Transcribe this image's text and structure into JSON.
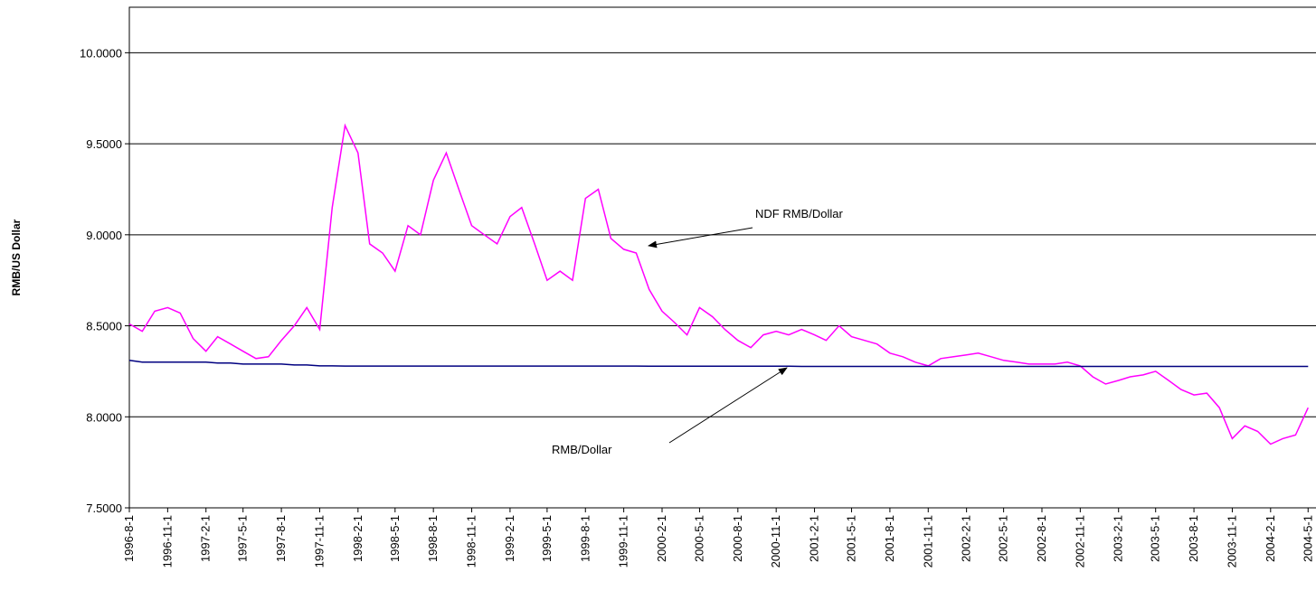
{
  "chart_data": {
    "type": "line",
    "y_label": "RMB/US Dollar",
    "x": [
      "1996-8-1",
      "1996-9-1",
      "1996-10-1",
      "1996-11-1",
      "1996-12-1",
      "1997-1-1",
      "1997-2-1",
      "1997-3-1",
      "1997-4-1",
      "1997-5-1",
      "1997-6-1",
      "1997-7-1",
      "1997-8-1",
      "1997-9-1",
      "1997-10-1",
      "1997-11-1",
      "1997-12-1",
      "1998-1-1",
      "1998-2-1",
      "1998-3-1",
      "1998-4-1",
      "1998-5-1",
      "1998-6-1",
      "1998-7-1",
      "1998-8-1",
      "1998-9-1",
      "1998-10-1",
      "1998-11-1",
      "1998-12-1",
      "1999-1-1",
      "1999-2-1",
      "1999-3-1",
      "1999-4-1",
      "1999-5-1",
      "1999-6-1",
      "1999-7-1",
      "1999-8-1",
      "1999-9-1",
      "1999-10-1",
      "1999-11-1",
      "1999-12-1",
      "2000-1-1",
      "2000-2-1",
      "2000-3-1",
      "2000-4-1",
      "2000-5-1",
      "2000-6-1",
      "2000-7-1",
      "2000-8-1",
      "2000-9-1",
      "2000-10-1",
      "2000-11-1",
      "2000-12-1",
      "2001-1-1",
      "2001-2-1",
      "2001-3-1",
      "2001-4-1",
      "2001-5-1",
      "2001-6-1",
      "2001-7-1",
      "2001-8-1",
      "2001-9-1",
      "2001-10-1",
      "2001-11-1",
      "2001-12-1",
      "2002-1-1",
      "2002-2-1",
      "2002-3-1",
      "2002-4-1",
      "2002-5-1",
      "2002-6-1",
      "2002-7-1",
      "2002-8-1",
      "2002-9-1",
      "2002-10-1",
      "2002-11-1",
      "2002-12-1",
      "2003-1-1",
      "2003-2-1",
      "2003-3-1",
      "2003-4-1",
      "2003-5-1",
      "2003-6-1",
      "2003-7-1",
      "2003-8-1",
      "2003-9-1",
      "2003-10-1",
      "2003-11-1",
      "2003-12-1",
      "2004-1-1",
      "2004-2-1",
      "2004-3-1",
      "2004-4-1",
      "2004-5-1"
    ],
    "series": [
      {
        "name": "NDF RMB/Dollar",
        "color": "#ff00ff",
        "values": [
          8.51,
          8.47,
          8.58,
          8.6,
          8.57,
          8.43,
          8.36,
          8.44,
          8.4,
          8.36,
          8.32,
          8.33,
          8.42,
          8.5,
          8.6,
          8.48,
          9.15,
          9.6,
          9.45,
          8.95,
          8.9,
          8.8,
          9.05,
          9.0,
          9.3,
          9.45,
          9.25,
          9.05,
          9.0,
          8.95,
          9.1,
          9.15,
          8.95,
          8.75,
          8.8,
          8.75,
          9.2,
          9.25,
          8.98,
          8.92,
          8.9,
          8.7,
          8.58,
          8.52,
          8.45,
          8.6,
          8.55,
          8.48,
          8.42,
          8.38,
          8.45,
          8.47,
          8.45,
          8.48,
          8.45,
          8.42,
          8.5,
          8.44,
          8.42,
          8.4,
          8.35,
          8.33,
          8.3,
          8.28,
          8.32,
          8.33,
          8.34,
          8.35,
          8.33,
          8.31,
          8.3,
          8.29,
          8.29,
          8.29,
          8.3,
          8.28,
          8.22,
          8.18,
          8.2,
          8.22,
          8.23,
          8.25,
          8.2,
          8.15,
          8.12,
          8.13,
          8.05,
          7.88,
          7.95,
          7.92,
          7.85,
          7.88,
          7.9,
          8.05
        ]
      },
      {
        "name": "RMB/Dollar",
        "color": "#000080",
        "values": [
          8.31,
          8.3,
          8.3,
          8.3,
          8.3,
          8.3,
          8.3,
          8.295,
          8.295,
          8.29,
          8.29,
          8.29,
          8.29,
          8.285,
          8.285,
          8.28,
          8.28,
          8.279,
          8.279,
          8.279,
          8.279,
          8.279,
          8.279,
          8.279,
          8.279,
          8.279,
          8.279,
          8.279,
          8.279,
          8.279,
          8.279,
          8.279,
          8.279,
          8.279,
          8.279,
          8.279,
          8.279,
          8.279,
          8.279,
          8.279,
          8.279,
          8.278,
          8.278,
          8.278,
          8.278,
          8.278,
          8.278,
          8.278,
          8.278,
          8.278,
          8.278,
          8.278,
          8.278,
          8.277,
          8.277,
          8.277,
          8.277,
          8.277,
          8.277,
          8.277,
          8.277,
          8.277,
          8.277,
          8.277,
          8.277,
          8.277,
          8.277,
          8.277,
          8.277,
          8.277,
          8.277,
          8.277,
          8.277,
          8.277,
          8.277,
          8.277,
          8.277,
          8.277,
          8.277,
          8.277,
          8.277,
          8.277,
          8.277,
          8.277,
          8.277,
          8.277,
          8.277,
          8.277,
          8.277,
          8.277,
          8.277,
          8.277,
          8.277,
          8.277
        ]
      }
    ],
    "xlim": [
      "1996-8-1",
      "2004-5-20"
    ],
    "xticks": [
      "1996-8-1",
      "1996-11-1",
      "1997-2-1",
      "1997-5-1",
      "1997-8-1",
      "1997-11-1",
      "1998-2-1",
      "1998-5-1",
      "1998-8-1",
      "1998-11-1",
      "1999-2-1",
      "1999-5-1",
      "1999-8-1",
      "1999-11-1",
      "2000-2-1",
      "2000-5-1",
      "2000-8-1",
      "2000-11-1",
      "2001-2-1",
      "2001-5-1",
      "2001-8-1",
      "2001-11-1",
      "2002-2-1",
      "2002-5-1",
      "2002-8-1",
      "2002-11-1",
      "2003-2-1",
      "2003-5-1",
      "2003-8-1",
      "2003-11-1",
      "2004-2-1",
      "2004-5-1"
    ],
    "ylim": [
      7.5,
      10.25
    ],
    "yticks": [
      {
        "value": 7.5,
        "label": "7.5000"
      },
      {
        "value": 8,
        "label": "8.0000"
      },
      {
        "value": 8.5,
        "label": "8.5000"
      },
      {
        "value": 9,
        "label": "9.0000"
      },
      {
        "value": 9.5,
        "label": "9.5000"
      },
      {
        "value": 10,
        "label": "10.0000"
      }
    ],
    "grid": true,
    "annotations": [
      "NDF RMB/Dollar",
      "RMB/Dollar"
    ]
  }
}
